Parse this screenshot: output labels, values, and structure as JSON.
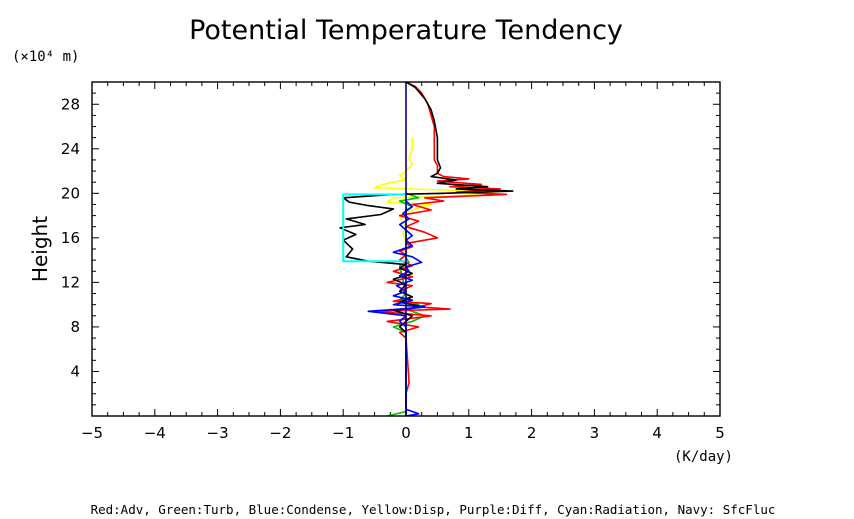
{
  "chart_data": {
    "type": "line",
    "title": "Potential Temperature Tendency",
    "ylabel": "Height",
    "y_unit": "(×10⁴ m)",
    "x_unit": "(K/day)",
    "caption": "Red:Adv, Green:Turb, Blue:Condense, Yellow:Disp, Purple:Diff, Cyan:Radiation, Navy: SfcFluc",
    "xlim": [
      -5,
      5
    ],
    "ylim": [
      0,
      30
    ],
    "x_ticks": [
      -5,
      -4,
      -3,
      -2,
      -1,
      0,
      1,
      2,
      3,
      4,
      5
    ],
    "y_ticks": [
      4,
      8,
      12,
      16,
      20,
      24,
      28
    ],
    "colors": {
      "Adv": "#ff0000",
      "Turb": "#00c000",
      "Condense": "#0000ff",
      "Disp": "#ffff00",
      "Diff": "#a020f0",
      "Radiation": "#00ffff",
      "SfcFluc": "#000080",
      "Total": "#000000"
    },
    "series": [
      {
        "key": "Disp",
        "points": [
          [
            0.0,
            1.0
          ],
          [
            0.0,
            15.5
          ],
          [
            -0.05,
            16.5
          ],
          [
            0.0,
            17.0
          ],
          [
            -0.1,
            17.8
          ],
          [
            0.1,
            18.5
          ],
          [
            0.4,
            19.0
          ],
          [
            -0.3,
            19.2
          ],
          [
            -0.2,
            19.6
          ],
          [
            0.9,
            19.8
          ],
          [
            1.4,
            20.1
          ],
          [
            0.6,
            20.3
          ],
          [
            -0.5,
            20.5
          ],
          [
            -0.3,
            20.9
          ],
          [
            0.0,
            21.2
          ],
          [
            -0.1,
            21.6
          ],
          [
            0.0,
            22.0
          ],
          [
            0.1,
            22.6
          ],
          [
            0.05,
            23.2
          ],
          [
            0.1,
            24.0
          ],
          [
            0.1,
            25.0
          ]
        ]
      },
      {
        "key": "Turb",
        "points": [
          [
            -0.3,
            0.0
          ],
          [
            0.0,
            0.4
          ],
          [
            0.0,
            7.5
          ],
          [
            -0.2,
            8.0
          ],
          [
            0.1,
            8.5
          ],
          [
            0.3,
            9.0
          ],
          [
            0.05,
            9.5
          ],
          [
            0.2,
            10.0
          ],
          [
            -0.1,
            10.4
          ],
          [
            0.0,
            11.0
          ],
          [
            -0.1,
            13.5
          ],
          [
            0.05,
            13.8
          ],
          [
            0.0,
            14.2
          ],
          [
            0.0,
            18.5
          ],
          [
            0.1,
            18.8
          ],
          [
            -0.1,
            19.3
          ],
          [
            0.2,
            19.6
          ],
          [
            0.0,
            20.0
          ]
        ]
      },
      {
        "key": "Adv",
        "points": [
          [
            0.0,
            0.0
          ],
          [
            0.0,
            2.0
          ],
          [
            0.05,
            3.0
          ],
          [
            0.0,
            7.0
          ],
          [
            -0.1,
            7.5
          ],
          [
            0.2,
            8.0
          ],
          [
            -0.3,
            8.5
          ],
          [
            0.4,
            9.0
          ],
          [
            -0.5,
            9.4
          ],
          [
            0.7,
            9.6
          ],
          [
            0.2,
            9.8
          ],
          [
            0.4,
            10.1
          ],
          [
            -0.2,
            10.3
          ],
          [
            0.1,
            10.7
          ],
          [
            -0.1,
            11.2
          ],
          [
            0.1,
            11.7
          ],
          [
            -0.3,
            12.0
          ],
          [
            0.1,
            12.5
          ],
          [
            -0.2,
            13.0
          ],
          [
            0.1,
            13.5
          ],
          [
            -0.1,
            14.0
          ],
          [
            0.0,
            14.5
          ],
          [
            -0.1,
            14.8
          ],
          [
            0.1,
            15.2
          ],
          [
            0.0,
            15.5
          ],
          [
            0.5,
            16.0
          ],
          [
            0.3,
            16.5
          ],
          [
            0.0,
            17.0
          ],
          [
            0.2,
            17.5
          ],
          [
            -0.1,
            18.0
          ],
          [
            0.4,
            18.5
          ],
          [
            0.1,
            19.0
          ],
          [
            0.6,
            19.3
          ],
          [
            0.3,
            19.6
          ],
          [
            1.6,
            19.9
          ],
          [
            0.8,
            20.1
          ],
          [
            1.5,
            20.4
          ],
          [
            0.7,
            20.6
          ],
          [
            1.2,
            20.8
          ],
          [
            0.5,
            21.1
          ],
          [
            1.0,
            21.3
          ],
          [
            0.6,
            21.5
          ],
          [
            0.5,
            21.8
          ],
          [
            0.5,
            22.5
          ],
          [
            0.45,
            23.0
          ],
          [
            0.45,
            24.0
          ],
          [
            0.45,
            25.0
          ],
          [
            0.45,
            26.0
          ],
          [
            0.4,
            27.0
          ],
          [
            0.35,
            28.0
          ],
          [
            0.25,
            29.0
          ],
          [
            0.15,
            29.6
          ],
          [
            0.0,
            30.0
          ]
        ]
      },
      {
        "key": "Total",
        "points": [
          [
            0.0,
            0.0
          ],
          [
            0.0,
            2.0
          ],
          [
            0.0,
            7.5
          ],
          [
            -0.1,
            8.0
          ],
          [
            0.1,
            9.0
          ],
          [
            -0.2,
            9.5
          ],
          [
            0.3,
            9.8
          ],
          [
            -0.1,
            10.2
          ],
          [
            0.1,
            10.7
          ],
          [
            -0.1,
            11.2
          ],
          [
            0.0,
            11.8
          ],
          [
            -0.2,
            12.3
          ],
          [
            0.1,
            12.8
          ],
          [
            -0.1,
            13.3
          ],
          [
            0.0,
            13.6
          ],
          [
            -0.6,
            13.9
          ],
          [
            -0.95,
            14.3
          ],
          [
            -0.85,
            15.0
          ],
          [
            -1.0,
            15.8
          ],
          [
            -0.8,
            16.3
          ],
          [
            -1.05,
            16.9
          ],
          [
            -0.65,
            17.2
          ],
          [
            -0.95,
            17.7
          ],
          [
            -0.4,
            18.1
          ],
          [
            -0.2,
            18.6
          ],
          [
            -0.6,
            18.9
          ],
          [
            -0.9,
            19.2
          ],
          [
            -1.0,
            19.6
          ],
          [
            -0.2,
            19.9
          ],
          [
            0.6,
            20.0
          ],
          [
            1.7,
            20.2
          ],
          [
            0.8,
            20.4
          ],
          [
            1.3,
            20.6
          ],
          [
            0.5,
            20.9
          ],
          [
            0.8,
            21.2
          ],
          [
            0.4,
            21.5
          ],
          [
            0.5,
            21.8
          ],
          [
            0.55,
            22.3
          ],
          [
            0.5,
            23.0
          ],
          [
            0.5,
            25.0
          ],
          [
            0.45,
            26.5
          ],
          [
            0.4,
            27.5
          ],
          [
            0.3,
            28.5
          ],
          [
            0.15,
            29.5
          ],
          [
            0.0,
            30.0
          ]
        ]
      },
      {
        "key": "Condense",
        "points": [
          [
            0.0,
            0.0
          ],
          [
            0.2,
            0.2
          ],
          [
            0.0,
            0.6
          ],
          [
            0.0,
            8.0
          ],
          [
            -0.1,
            8.5
          ],
          [
            0.0,
            9.0
          ],
          [
            -0.6,
            9.4
          ],
          [
            -0.1,
            9.6
          ],
          [
            0.3,
            9.8
          ],
          [
            -0.2,
            10.0
          ],
          [
            0.1,
            10.4
          ],
          [
            -0.2,
            10.8
          ],
          [
            0.0,
            11.2
          ],
          [
            -0.15,
            11.7
          ],
          [
            0.1,
            12.2
          ],
          [
            -0.1,
            12.6
          ],
          [
            0.05,
            13.0
          ],
          [
            0.0,
            13.4
          ],
          [
            0.25,
            13.8
          ],
          [
            0.1,
            14.3
          ],
          [
            -0.2,
            14.7
          ],
          [
            0.1,
            15.3
          ],
          [
            0.0,
            15.8
          ],
          [
            0.1,
            16.2
          ],
          [
            0.0,
            16.7
          ],
          [
            -0.1,
            17.2
          ],
          [
            0.05,
            17.7
          ],
          [
            -0.05,
            18.2
          ],
          [
            0.1,
            18.8
          ],
          [
            0.0,
            19.3
          ]
        ]
      },
      {
        "key": "Radiation",
        "points": [
          [
            0.0,
            13.9
          ],
          [
            -1.0,
            13.9
          ],
          [
            -1.0,
            19.9
          ],
          [
            0.0,
            19.9
          ]
        ]
      },
      {
        "key": "SfcFluc",
        "points": [
          [
            0.0,
            0.0
          ],
          [
            0.0,
            30.0
          ]
        ]
      }
    ]
  }
}
